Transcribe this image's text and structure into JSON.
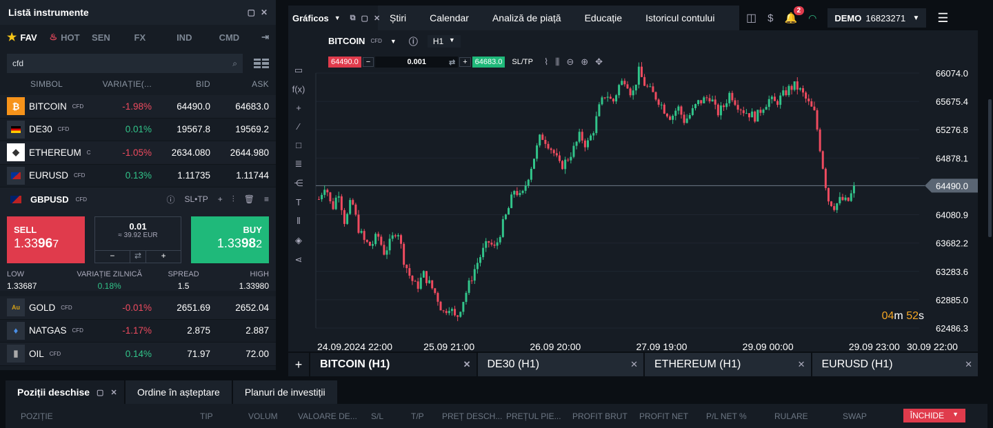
{
  "left_panel": {
    "title": "Listă instrumente",
    "tabs": [
      {
        "label": "FAV",
        "icon": "star-icon"
      },
      {
        "label": "HOT",
        "icon": "fire-icon"
      },
      {
        "label": "SEN",
        "icon": ""
      },
      {
        "label": "FX",
        "icon": ""
      },
      {
        "label": "IND",
        "icon": ""
      },
      {
        "label": "CMD",
        "icon": ""
      }
    ],
    "search_value": "cfd",
    "columns": [
      "SIMBOL",
      "VARIAȚIE(...",
      "BID",
      "ASK"
    ],
    "rows": [
      {
        "symbol": "BITCOIN",
        "tag": "CFD",
        "change": "-1.98%",
        "bid": "64490.0",
        "ask": "64683.0",
        "dir": "neg",
        "icon": "bitcoin-icon"
      },
      {
        "symbol": "DE30",
        "tag": "CFD",
        "change": "0.01%",
        "bid": "19567.8",
        "ask": "19569.2",
        "dir": "pos",
        "icon": "germany-flag-icon"
      },
      {
        "symbol": "ETHEREUM",
        "tag": "C",
        "change": "-1.05%",
        "bid": "2634.080",
        "ask": "2644.980",
        "dir": "neg",
        "icon": "ethereum-icon"
      },
      {
        "symbol": "EURUSD",
        "tag": "CFD",
        "change": "0.13%",
        "bid": "1.11735",
        "ask": "1.11744",
        "dir": "pos",
        "icon": "eu-us-flag-icon"
      }
    ],
    "expanded": {
      "symbol": "GBPUSD",
      "tag": "CFD",
      "sltp": "SL•TP",
      "sell_label": "SELL",
      "sell_price_a": "1.33",
      "sell_price_b": "96",
      "sell_price_c": "7",
      "buy_label": "BUY",
      "buy_price_a": "1.33",
      "buy_price_b": "98",
      "buy_price_c": "2",
      "qty": "0.01",
      "qty_eur": "≈ 39.92 EUR",
      "low_label": "LOW",
      "low": "1.33687",
      "daily_label": "VARIAȚIE ZILNICĂ",
      "daily": "0.18%",
      "spread_label": "SPREAD",
      "spread": "1.5",
      "high_label": "HIGH",
      "high": "1.33980"
    },
    "rows2": [
      {
        "symbol": "GOLD",
        "tag": "CFD",
        "change": "-0.01%",
        "bid": "2651.69",
        "ask": "2652.04",
        "dir": "neg",
        "icon": "gold-icon"
      },
      {
        "symbol": "NATGAS",
        "tag": "CFD",
        "change": "-1.17%",
        "bid": "2.875",
        "ask": "2.887",
        "dir": "neg",
        "icon": "flame-icon"
      },
      {
        "symbol": "OIL",
        "tag": "CFD",
        "change": "0.14%",
        "bid": "71.97",
        "ask": "72.00",
        "dir": "pos",
        "icon": "oil-icon"
      }
    ]
  },
  "topnav": {
    "graphs": "Gráficos",
    "items": [
      "Știri",
      "Calendar",
      "Analiză de piață",
      "Educație",
      "Istoricul contului"
    ],
    "badge": "2",
    "account_type": "DEMO",
    "account_no": "16823271"
  },
  "chart": {
    "symbol": "BITCOIN",
    "tag": "CFD",
    "timeframe": "H1",
    "sell": "64490.0",
    "qty": "0.001",
    "buy": "64683.0",
    "sltp": "SL/TP",
    "current_price": "64490.0",
    "countdown_m": "04",
    "countdown_s": "52",
    "m": "m",
    "s": "s"
  },
  "chart_data": {
    "type": "candlestick",
    "y_ticks": [
      "66074.0",
      "65675.4",
      "65276.8",
      "64878.1",
      "64490.0",
      "64080.9",
      "63682.2",
      "63283.6",
      "62885.0",
      "62486.3"
    ],
    "y_range": [
      62486.3,
      66074.0
    ],
    "x_ticks": [
      "24.09.2024 22:00",
      "25.09 21:00",
      "26.09 20:00",
      "27.09 19:00",
      "29.09 00:00",
      "29.09 23:00",
      "30.09 22:00"
    ],
    "close_path": [
      64300,
      64520,
      64150,
      64420,
      63950,
      64300,
      63900,
      63700,
      63640,
      63800,
      63550,
      63700,
      63900,
      63450,
      63200,
      63050,
      63250,
      63100,
      62950,
      62700,
      62800,
      62600,
      62850,
      63100,
      63350,
      63550,
      63700,
      63600,
      63900,
      64150,
      64450,
      64300,
      64600,
      64900,
      65200,
      65100,
      64950,
      64750,
      64850,
      65000,
      65200,
      65050,
      65250,
      65600,
      65800,
      65650,
      65900,
      66000,
      65750,
      66100,
      65900,
      65800,
      65700,
      65550,
      65450,
      65600,
      65400,
      65500,
      65650,
      65700,
      65750,
      65500,
      65600,
      65800,
      65650,
      65550,
      65500,
      65450,
      65600,
      65700,
      65650,
      65750,
      65850,
      65900,
      65800,
      65650,
      65500,
      64900,
      64300,
      64200,
      64300,
      64250,
      64450
    ]
  },
  "chart_tabs": [
    "BITCOIN (H1)",
    "DE30 (H1)",
    "ETHEREUM (H1)",
    "EURUSD (H1)"
  ],
  "bottom": {
    "tabs": [
      "Poziții deschise",
      "Ordine în așteptare",
      "Planuri de investiții"
    ],
    "columns": [
      "POZIȚIE",
      "TIP",
      "VOLUM",
      "VALOARE DE...",
      "S/L",
      "T/P",
      "PREȚ DESCH...",
      "PREȚUL PIE...",
      "PROFIT BRUT",
      "PROFIT NET",
      "P/L NET %",
      "RULARE",
      "SWAP"
    ],
    "close_btn": "ÎNCHIDE"
  },
  "colors": {
    "up": "#32c48a",
    "down": "#ef4b5f",
    "bg": "#161c24"
  }
}
